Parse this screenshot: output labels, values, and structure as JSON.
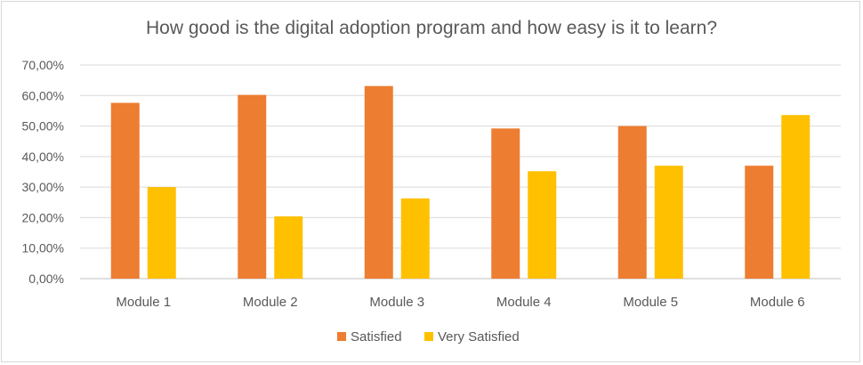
{
  "chart_data": {
    "type": "bar",
    "title": "How good is the digital adoption program and how easy is it to learn?",
    "xlabel": "",
    "ylabel": "",
    "categories": [
      "Module 1",
      "Module 2",
      "Module 3",
      "Module 4",
      "Module 5",
      "Module 6"
    ],
    "series": [
      {
        "name": "Satisfied",
        "color": "#ed7d31",
        "values": [
          57.6,
          60.2,
          63.1,
          49.2,
          50.0,
          37.0
        ]
      },
      {
        "name": "Very Satisfied",
        "color": "#ffc000",
        "values": [
          30.0,
          20.4,
          26.3,
          35.2,
          37.0,
          53.6
        ]
      }
    ],
    "ylim": [
      0,
      70
    ],
    "yticks": [
      0,
      10,
      20,
      30,
      40,
      50,
      60,
      70
    ],
    "ytick_labels": [
      "0,00%",
      "10,00%",
      "20,00%",
      "30,00%",
      "40,00%",
      "50,00%",
      "60,00%",
      "70,00%"
    ],
    "grid": true,
    "legend_position": "bottom"
  }
}
